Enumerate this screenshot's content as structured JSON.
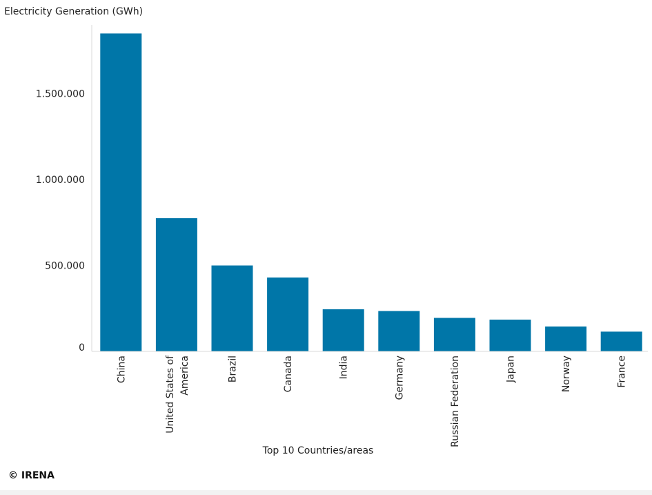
{
  "chart_data": {
    "type": "bar",
    "ylabel": "Electricity Generation (GWh)",
    "xlabel": "Top 10 Countries/areas",
    "categories": [
      "China",
      "United States of America",
      "Brazil",
      "Canada",
      "India",
      "Germany",
      "Russian Federation",
      "Japan",
      "Norway",
      "France"
    ],
    "values": [
      1850000,
      775000,
      500000,
      430000,
      245000,
      235000,
      195000,
      185000,
      145000,
      115000
    ],
    "ylim": [
      0,
      1900000
    ],
    "yticks": [
      0,
      500000,
      1000000,
      1500000
    ],
    "ytick_labels": [
      "0",
      "500.000",
      "1.000.000",
      "1.500.000"
    ],
    "bar_color": "#0076a8",
    "grid": false
  },
  "credit": "© IRENA"
}
